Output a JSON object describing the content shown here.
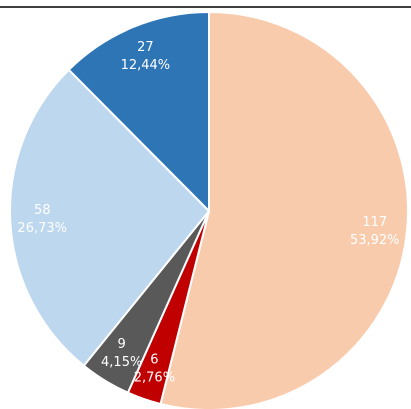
{
  "chart_data": {
    "type": "pie",
    "values": [
      117,
      6,
      9,
      58,
      27
    ],
    "shares": [
      53.92,
      2.76,
      4.15,
      26.73,
      12.44
    ],
    "share_labels": [
      "53,92%",
      "2,76%",
      "4,15%",
      "26,73%",
      "12,44%"
    ],
    "colors": [
      "#f8cbad",
      "#c00000",
      "#595959",
      "#bdd7ee",
      "#2e75b6"
    ]
  }
}
